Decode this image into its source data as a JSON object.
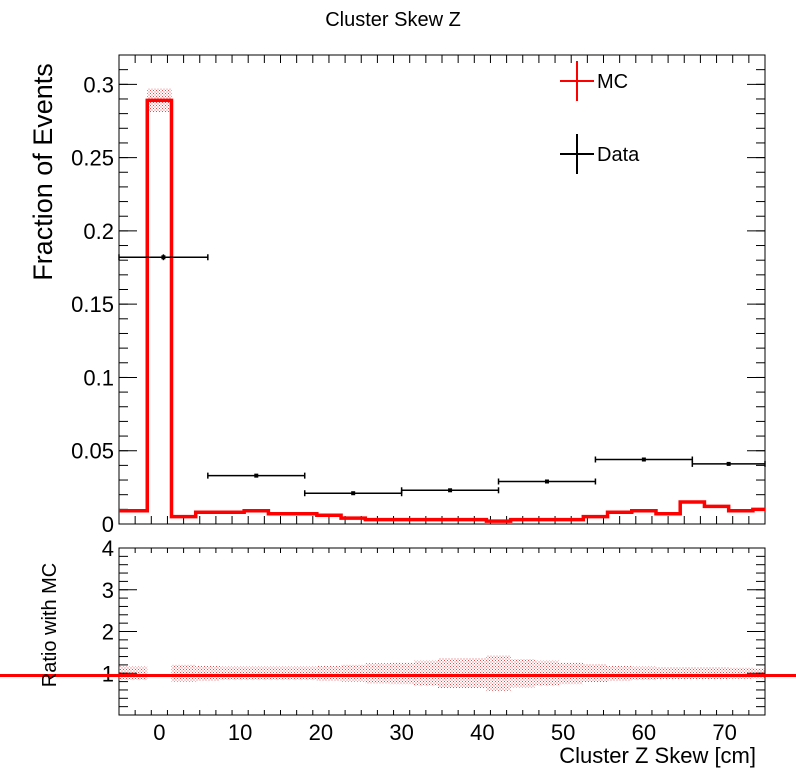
{
  "chart_data": [
    {
      "type": "histogram",
      "title": "Cluster Skew Z",
      "xlabel": "Cluster Z Skew [cm]",
      "ylabel": "Fraction of Events",
      "xlim": [
        -5,
        75
      ],
      "ylim": [
        0,
        0.32
      ],
      "xticks": [
        "0",
        "10",
        "20",
        "30",
        "40",
        "50",
        "60",
        "70"
      ],
      "yticks": [
        "0",
        "0.05",
        "0.1",
        "0.15",
        "0.2",
        "0.25",
        "0.3"
      ],
      "legend": {
        "position": "top-right",
        "entries": [
          {
            "label": "MC",
            "color": "#ff0000"
          },
          {
            "label": "Data",
            "color": "#000000"
          }
        ]
      },
      "series": [
        {
          "name": "MC",
          "color": "#ff0000",
          "style": "step-with-error-band",
          "bin_edges": [
            -5,
            -1.5,
            1.5,
            4.5,
            7.5,
            10.5,
            13.5,
            16.5,
            19.5,
            22.5,
            25.5,
            28.5,
            31.5,
            34.5,
            37.5,
            40.5,
            43.5,
            46.5,
            49.5,
            52.5,
            55.5,
            58.5,
            61.5,
            64.5,
            67.5,
            70.5,
            73.5,
            75
          ],
          "values": [
            0.009,
            0.289,
            0.005,
            0.008,
            0.008,
            0.009,
            0.007,
            0.007,
            0.006,
            0.004,
            0.003,
            0.003,
            0.003,
            0.003,
            0.003,
            0.002,
            0.003,
            0.003,
            0.003,
            0.005,
            0.008,
            0.009,
            0.007,
            0.015,
            0.012,
            0.009,
            0.01
          ],
          "errors": [
            0.0005,
            0.008,
            0.0005,
            0.0005,
            0.0005,
            0.0005,
            0.0005,
            0.0005,
            0.0004,
            0.0004,
            0.0003,
            0.0003,
            0.0003,
            0.0003,
            0.0003,
            0.0003,
            0.0003,
            0.0003,
            0.0003,
            0.0004,
            0.0005,
            0.0005,
            0.0005,
            0.0008,
            0.0007,
            0.0005,
            0.0006
          ]
        },
        {
          "name": "Data",
          "color": "#000000",
          "style": "points-with-errorbars",
          "bin_edges": [
            -5,
            6,
            18,
            30,
            42,
            54,
            66,
            75
          ],
          "values": [
            0.182,
            0.033,
            0.021,
            0.023,
            0.029,
            0.044,
            0.041
          ],
          "errors": [
            0.002,
            0.001,
            0.0008,
            0.0008,
            0.0008,
            0.0008,
            0.0008
          ]
        }
      ]
    },
    {
      "type": "histogram",
      "ylabel": "Ratio with MC",
      "xlabel": "Cluster Z Skew [cm]",
      "xlim": [
        -5,
        75
      ],
      "ylim": [
        0,
        4
      ],
      "yticks": [
        "1",
        "2",
        "3",
        "4"
      ],
      "reference_line": 1,
      "series": [
        {
          "name": "MC",
          "color": "#ff0000",
          "style": "error-band",
          "bin_edges": [
            -5,
            -1.5,
            1.5,
            4.5,
            7.5,
            10.5,
            13.5,
            16.5,
            19.5,
            22.5,
            25.5,
            28.5,
            31.5,
            34.5,
            37.5,
            40.5,
            43.5,
            46.5,
            49.5,
            52.5,
            55.5,
            58.5,
            61.5,
            64.5,
            67.5,
            70.5,
            73.5,
            75
          ],
          "values": [
            1,
            0,
            1,
            1,
            1,
            1,
            1,
            1,
            1,
            1,
            1,
            1,
            1,
            1,
            1,
            1,
            1,
            1,
            1,
            1,
            1,
            1,
            1,
            1,
            1,
            1,
            1
          ],
          "errors": [
            0.16,
            0,
            0.2,
            0.18,
            0.16,
            0.16,
            0.16,
            0.16,
            0.18,
            0.2,
            0.24,
            0.26,
            0.3,
            0.36,
            0.36,
            0.42,
            0.34,
            0.3,
            0.26,
            0.22,
            0.18,
            0.16,
            0.15,
            0.14,
            0.14,
            0.13,
            0.12
          ]
        }
      ]
    }
  ]
}
